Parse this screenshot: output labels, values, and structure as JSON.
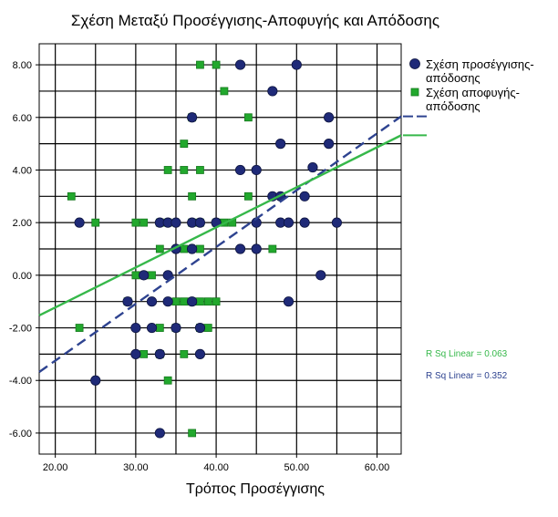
{
  "chart_data": {
    "type": "scatter",
    "title": "Σχέση Μεταξύ Προσέγγισης-Αποφυγής και Απόδοσης",
    "xlabel": "Τρόπος Προσέγγισης",
    "ylabel": "",
    "xlim": [
      18,
      63
    ],
    "ylim": [
      -6.8,
      8.8
    ],
    "x_ticks": [
      "20.00",
      "30.00",
      "40.00",
      "50.00",
      "60.00"
    ],
    "y_ticks": [
      "-6.00",
      "-4.00",
      "-2.00",
      "0.00",
      "2.00",
      "4.00",
      "6.00",
      "8.00"
    ],
    "grid": true,
    "legend_position": "right",
    "series": [
      {
        "name": "Σχέση προσέγγισης-απόδοσης",
        "label_lines": [
          "Σχέση προσέγγισης-",
          "απόδοσης"
        ],
        "marker": "circle",
        "color": "#1f2a78",
        "points": [
          [
            43,
            8
          ],
          [
            50,
            8
          ],
          [
            47,
            7
          ],
          [
            37,
            6
          ],
          [
            54,
            6
          ],
          [
            48,
            5
          ],
          [
            54,
            5
          ],
          [
            52,
            4.1
          ],
          [
            43,
            4
          ],
          [
            45,
            4
          ],
          [
            47,
            3
          ],
          [
            48,
            3
          ],
          [
            51,
            3
          ],
          [
            23,
            2
          ],
          [
            33,
            2
          ],
          [
            34,
            2
          ],
          [
            35,
            2
          ],
          [
            37,
            2
          ],
          [
            38,
            2
          ],
          [
            40,
            2
          ],
          [
            45,
            2
          ],
          [
            48,
            2
          ],
          [
            49,
            2
          ],
          [
            51,
            2
          ],
          [
            55,
            2
          ],
          [
            35,
            1
          ],
          [
            37,
            1
          ],
          [
            43,
            1
          ],
          [
            45,
            1
          ],
          [
            31,
            0
          ],
          [
            34,
            0
          ],
          [
            53,
            0
          ],
          [
            29,
            -1
          ],
          [
            32,
            -1
          ],
          [
            34,
            -1
          ],
          [
            37,
            -1
          ],
          [
            49,
            -1
          ],
          [
            30,
            -2
          ],
          [
            32,
            -2
          ],
          [
            35,
            -2
          ],
          [
            38,
            -2
          ],
          [
            30,
            -3
          ],
          [
            33,
            -3
          ],
          [
            38,
            -3
          ],
          [
            25,
            -4
          ],
          [
            33,
            -6
          ]
        ]
      },
      {
        "name": "Σχέση αποφυγής-απόδοσης",
        "label_lines": [
          "Σχέση αποφυγής-",
          "απόδοσης"
        ],
        "marker": "square",
        "color": "#22a82d",
        "points": [
          [
            38,
            8
          ],
          [
            40,
            8
          ],
          [
            41,
            7
          ],
          [
            37,
            6
          ],
          [
            44,
            6
          ],
          [
            36,
            5
          ],
          [
            34,
            4
          ],
          [
            36,
            4
          ],
          [
            38,
            4
          ],
          [
            22,
            3
          ],
          [
            37,
            3
          ],
          [
            44,
            3
          ],
          [
            25,
            2
          ],
          [
            30,
            2
          ],
          [
            31,
            2
          ],
          [
            33,
            2
          ],
          [
            34,
            2
          ],
          [
            37,
            2
          ],
          [
            38,
            2
          ],
          [
            40,
            2
          ],
          [
            41,
            2
          ],
          [
            42,
            2
          ],
          [
            33,
            1
          ],
          [
            36,
            1
          ],
          [
            38,
            1
          ],
          [
            47,
            1
          ],
          [
            30,
            0
          ],
          [
            31,
            0
          ],
          [
            32,
            0
          ],
          [
            29,
            -1
          ],
          [
            35,
            -1
          ],
          [
            36,
            -1
          ],
          [
            37,
            -1
          ],
          [
            38,
            -1
          ],
          [
            39,
            -1
          ],
          [
            40,
            -1
          ],
          [
            23,
            -2
          ],
          [
            33,
            -2
          ],
          [
            35,
            -2
          ],
          [
            38,
            -2
          ],
          [
            39,
            -2
          ],
          [
            31,
            -3
          ],
          [
            33,
            -3
          ],
          [
            36,
            -3
          ],
          [
            34,
            -4
          ],
          [
            37,
            -6
          ]
        ]
      }
    ],
    "fit_lines": [
      {
        "series": "Σχέση προσέγγισης-απόδοσης",
        "style": "dashed",
        "color": "#2e4390",
        "x": [
          18,
          63
        ],
        "y": [
          -3.68,
          6.04
        ],
        "r_squared_label": "R Sq Linear = 0.352"
      },
      {
        "series": "Σχέση αποφυγής-απόδοσης",
        "style": "solid",
        "color": "#36b84a",
        "x": [
          18,
          63
        ],
        "y": [
          -1.53,
          5.32
        ],
        "r_squared_label": "R Sq Linear = 0.063"
      }
    ]
  }
}
